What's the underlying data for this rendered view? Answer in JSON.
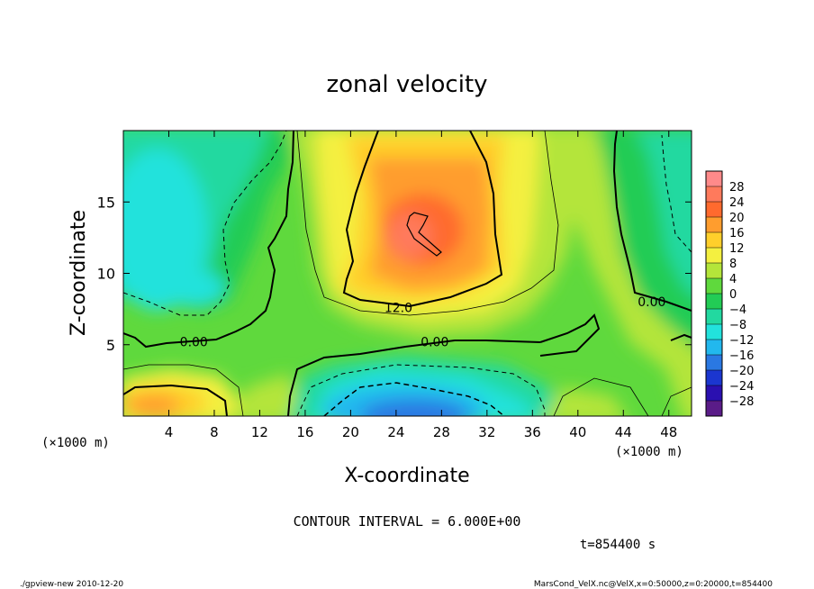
{
  "chart_data": {
    "type": "heatmap",
    "title": "zonal velocity",
    "xlabel": "X-coordinate",
    "ylabel": "Z-coordinate",
    "x_unit_label": "(×1000 m)",
    "z_unit_label": "(×1000 m)",
    "xlim": [
      0,
      50
    ],
    "ylim": [
      0,
      20
    ],
    "x_ticks": [
      4,
      8,
      12,
      16,
      20,
      24,
      28,
      32,
      36,
      40,
      44,
      48
    ],
    "y_ticks": [
      5,
      10,
      15
    ],
    "contour_labels": [
      {
        "text": "12.0",
        "x": 24.2,
        "z": 7.6
      },
      {
        "text": "0.00",
        "x": 6.2,
        "z": 5.2
      },
      {
        "text": "0.00",
        "x": 27.4,
        "z": 5.2
      },
      {
        "text": "0.00",
        "x": 46.5,
        "z": 8.0
      }
    ],
    "colorbar": {
      "levels": [
        28,
        24,
        20,
        16,
        12,
        8,
        4,
        0,
        -4,
        -8,
        -12,
        -16,
        -20,
        -24,
        -28
      ],
      "labels": [
        "28",
        "24",
        "20",
        "16",
        "12",
        "8",
        "4",
        "0",
        "−4",
        "−8",
        "−12",
        "−16",
        "−20",
        "−24",
        "−28"
      ],
      "colors": [
        "#ff8a8a",
        "#ff7a5c",
        "#ff6a2e",
        "#ff9d2e",
        "#ffcf2b",
        "#f4f040",
        "#b4e53a",
        "#5fd93d",
        "#22cc55",
        "#22d9a0",
        "#22e2dc",
        "#22b8ee",
        "#2a78e2",
        "#1b36d0",
        "#2a10b0",
        "#5a1c88"
      ]
    },
    "contour_interval": "CONTOUR INTERVAL = 6.000E+00",
    "time": "t=854400 s"
  },
  "footer": {
    "left": "./gpview-new   2010-12-20",
    "right": "MarsCond_VelX.nc@VelX,x=0:50000,z=0:20000,t=854400"
  }
}
